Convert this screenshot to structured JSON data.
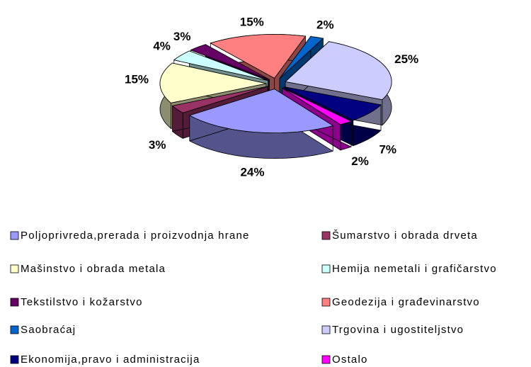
{
  "chart_data": {
    "type": "pie",
    "categories": [
      "Poljoprivreda,prerada i proizvodnja hrane",
      "Šumarstvo i obrada drveta",
      "Mašinstvo i obrada metala",
      "Hemija nemetali i grafičarstvo",
      "Tekstilstvo i kožarstvo",
      "Geodezija i građevinarstvo",
      "Saobraćaj",
      "Trgovina i ugostiteljstvo",
      "Ekonomija,pravo i administracija",
      "Ostalo"
    ],
    "values": [
      24,
      3,
      15,
      4,
      3,
      15,
      2,
      25,
      7,
      2
    ],
    "value_labels": [
      "24%",
      "3%",
      "15%",
      "4%",
      "3%",
      "15%",
      "2%",
      "25%",
      "7%",
      "2%"
    ],
    "colors": [
      "#9999ff",
      "#993366",
      "#ffffcc",
      "#ccffff",
      "#660066",
      "#ff8080",
      "#0066cc",
      "#ccccff",
      "#000080",
      "#ff00ff"
    ],
    "legend": "bottom"
  }
}
